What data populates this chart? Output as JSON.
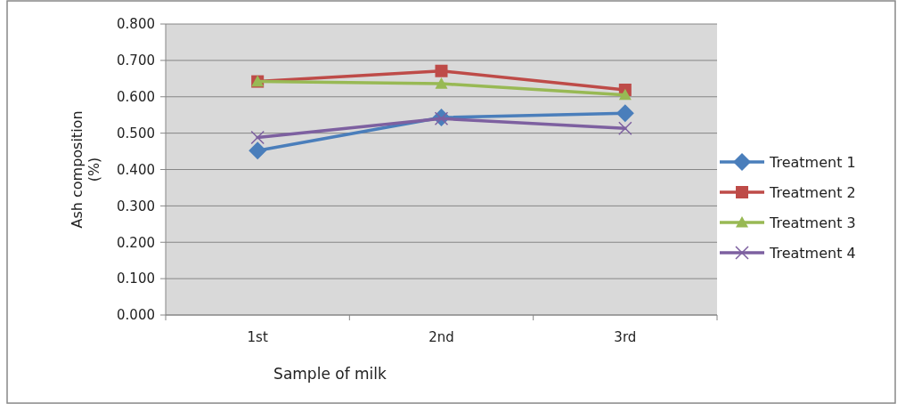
{
  "chart_data": {
    "type": "line",
    "xlabel": "Sample of milk",
    "ylabel": "Ash composition (%)",
    "categories": [
      "1st",
      "2nd",
      "3rd"
    ],
    "series": [
      {
        "name": "Treatment 1",
        "color": "#4a7ebb",
        "marker": "diamond",
        "values": [
          0.452,
          0.543,
          0.555
        ]
      },
      {
        "name": "Treatment 2",
        "color": "#be4b48",
        "marker": "square",
        "values": [
          0.642,
          0.671,
          0.619
        ]
      },
      {
        "name": "Treatment 3",
        "color": "#98b954",
        "marker": "triangle",
        "values": [
          0.642,
          0.636,
          0.605
        ]
      },
      {
        "name": "Treatment 4",
        "color": "#7d60a0",
        "marker": "cross",
        "values": [
          0.488,
          0.54,
          0.513
        ]
      }
    ],
    "ylim": [
      0,
      0.8
    ],
    "yticks": [
      {
        "value": 0,
        "label": "0.000"
      },
      {
        "value": 0.1,
        "label": "0.100"
      },
      {
        "value": 0.2,
        "label": "0.200"
      },
      {
        "value": 0.3,
        "label": "0.300"
      },
      {
        "value": 0.4,
        "label": "0.400"
      },
      {
        "value": 0.5,
        "label": "0.500"
      },
      {
        "value": 0.6,
        "label": "0.600"
      },
      {
        "value": 0.7,
        "label": "0.700"
      },
      {
        "value": 0.8,
        "label": "0.800"
      }
    ],
    "grid": "y",
    "legend": "right"
  }
}
